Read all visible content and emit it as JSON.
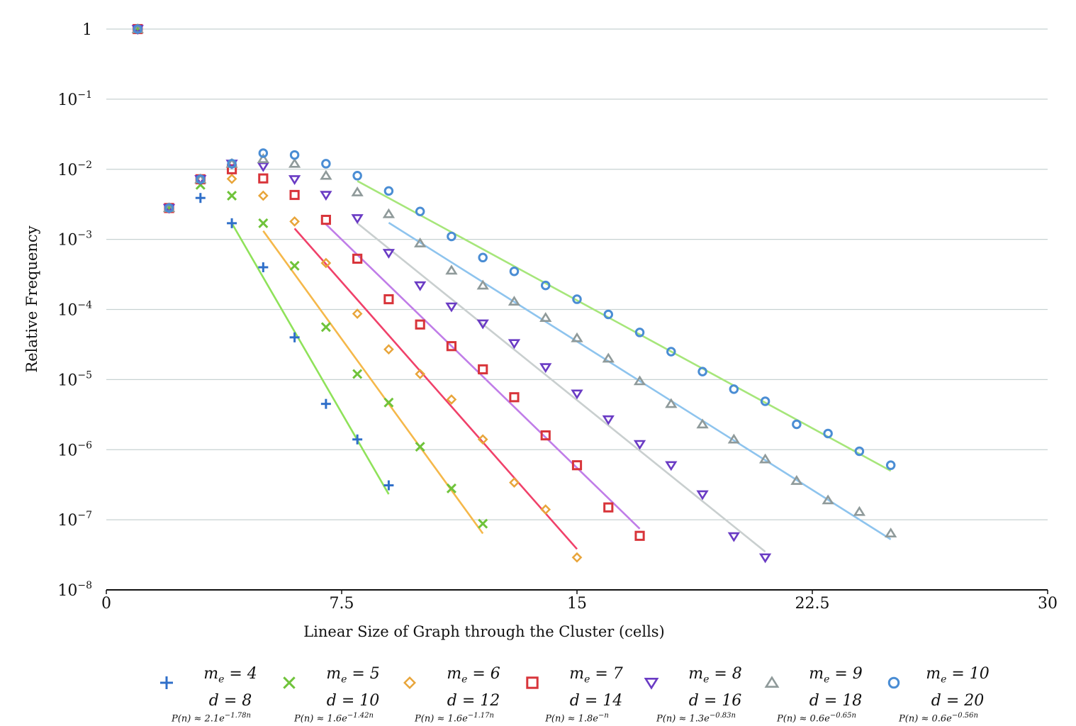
{
  "chart_data": {
    "type": "scatter",
    "yscale": "log",
    "xlabel": "Linear Size of Graph through the Cluster  (cells)",
    "ylabel": "Relative Frequency",
    "xlim": [
      0,
      30
    ],
    "ylim_exponent": [
      -8,
      0
    ],
    "xticks": [
      0,
      7.5,
      15,
      22.5,
      30
    ],
    "xtick_labels": [
      "0",
      "7.5",
      "15",
      "22.5",
      "30"
    ],
    "ytick_exponents": [
      0,
      -1,
      -2,
      -3,
      -4,
      -5,
      -6,
      -7,
      -8
    ],
    "ytick_base": "10",
    "ytick_one_label": "1",
    "grid": "horizontal",
    "legend_position": "bottom",
    "series": [
      {
        "name": "m_e = 4",
        "line1": "me = 4",
        "line2": "d = 8",
        "fit_label": "P(n) ≈ 2.1e^{−1.78n}",
        "fit_prefix": "P(n) ≈ 2.1e",
        "fit_exp": "−1.78n",
        "marker": "plus",
        "color": "#2f6fc9",
        "fit_color": "#8fe25a",
        "x": [
          1,
          2,
          3,
          4,
          5,
          6,
          7,
          8,
          9
        ],
        "y": [
          1,
          0.0028,
          0.0039,
          0.0017,
          0.0004,
          4e-05,
          4.5e-06,
          1.4e-06,
          3.1e-07
        ],
        "fit": {
          "a": 2.1,
          "b": 1.78,
          "x_range": [
            4,
            9
          ]
        }
      },
      {
        "name": "m_e = 5",
        "line1": "me = 5",
        "line2": "d = 10",
        "fit_label": "P(n) ≈ 1.6e^{−1.42n}",
        "fit_prefix": "P(n) ≈ 1.6e",
        "fit_exp": "−1.42n",
        "marker": "x",
        "color": "#6fc33a",
        "fit_color": "#f5b84a",
        "x": [
          1,
          2,
          3,
          4,
          5,
          6,
          7,
          8,
          9,
          10,
          11,
          12
        ],
        "y": [
          1,
          0.0028,
          0.006,
          0.0042,
          0.0017,
          0.00042,
          5.6e-05,
          1.2e-05,
          4.7e-06,
          1.1e-06,
          2.8e-07,
          8.8e-08
        ],
        "fit": {
          "a": 1.6,
          "b": 1.42,
          "x_range": [
            5,
            12
          ]
        }
      },
      {
        "name": "m_e = 6",
        "line1": "me = 6",
        "line2": "d = 12",
        "fit_label": "P(n) ≈ 1.6e^{−1.17n}",
        "fit_prefix": "P(n) ≈ 1.6e",
        "fit_exp": "−1.17n",
        "marker": "diamond",
        "color": "#e8a53a",
        "fit_color": "#f0416a",
        "x": [
          1,
          2,
          3,
          4,
          5,
          6,
          7,
          8,
          9,
          10,
          11,
          12,
          13,
          14,
          15
        ],
        "y": [
          1,
          0.0028,
          0.0073,
          0.0073,
          0.0042,
          0.0018,
          0.00046,
          8.7e-05,
          2.7e-05,
          1.2e-05,
          5.2e-06,
          1.4e-06,
          3.4e-07,
          1.4e-07,
          2.9e-08
        ],
        "fit": {
          "a": 1.6,
          "b": 1.17,
          "x_range": [
            6,
            15
          ]
        }
      },
      {
        "name": "m_e = 7",
        "line1": "me = 7",
        "line2": "d = 14",
        "fit_label": "P(n) ≈ 1.8e^{−n}",
        "fit_prefix": "P(n) ≈ 1.8e",
        "fit_exp": "−n",
        "marker": "square",
        "color": "#d8343a",
        "fit_color": "#c07de8",
        "x": [
          1,
          2,
          3,
          4,
          5,
          6,
          7,
          8,
          9,
          10,
          11,
          12,
          13,
          14,
          15,
          16,
          17
        ],
        "y": [
          1,
          0.0028,
          0.0072,
          0.01,
          0.0074,
          0.0043,
          0.0019,
          0.00053,
          0.00014,
          6.1e-05,
          3e-05,
          1.4e-05,
          5.6e-06,
          1.6e-06,
          6e-07,
          1.5e-07,
          5.9e-08
        ],
        "fit": {
          "a": 1.8,
          "b": 1.0,
          "x_range": [
            7,
            17
          ]
        }
      },
      {
        "name": "m_e = 8",
        "line1": "me = 8",
        "line2": "d = 16",
        "fit_label": "P(n) ≈ 1.3e^{−0.83n}",
        "fit_prefix": "P(n) ≈ 1.3e",
        "fit_exp": "−0.83n",
        "marker": "triangle-down",
        "color": "#6a3bc4",
        "fit_color": "#c9cfcf",
        "x": [
          1,
          2,
          3,
          4,
          5,
          6,
          7,
          8,
          9,
          10,
          11,
          12,
          13,
          14,
          15,
          16,
          17,
          18,
          19,
          20,
          21
        ],
        "y": [
          1,
          0.0028,
          0.0072,
          0.012,
          0.011,
          0.0072,
          0.0043,
          0.002,
          0.00064,
          0.00022,
          0.00011,
          6.3e-05,
          3.3e-05,
          1.5e-05,
          6.3e-06,
          2.7e-06,
          1.2e-06,
          6e-07,
          2.3e-07,
          5.8e-08,
          2.9e-08
        ],
        "fit": {
          "a": 1.3,
          "b": 0.83,
          "x_range": [
            8,
            21
          ]
        }
      },
      {
        "name": "m_e = 9",
        "line1": "me = 9",
        "line2": "d = 18",
        "fit_label": "P(n) ≈ 0.6e^{−0.65n}",
        "fit_prefix": "P(n) ≈ 0.6e",
        "fit_exp": "−0.65n",
        "marker": "triangle-up",
        "color": "#8f9a9a",
        "fit_color": "#8ec4ee",
        "x": [
          1,
          2,
          3,
          4,
          5,
          6,
          7,
          8,
          9,
          10,
          11,
          12,
          13,
          14,
          15,
          16,
          17,
          18,
          19,
          20,
          21,
          22,
          23,
          24,
          25
        ],
        "y": [
          1,
          0.0028,
          0.0072,
          0.012,
          0.014,
          0.012,
          0.0081,
          0.0047,
          0.0023,
          0.00088,
          0.00036,
          0.00022,
          0.00013,
          7.6e-05,
          3.9e-05,
          2e-05,
          9.5e-06,
          4.5e-06,
          2.3e-06,
          1.4e-06,
          7.3e-07,
          3.6e-07,
          1.9e-07,
          1.3e-07,
          6.4e-08
        ],
        "fit": {
          "a": 0.6,
          "b": 0.65,
          "x_range": [
            9,
            25
          ]
        }
      },
      {
        "name": "m_e = 10",
        "line1": "me = 10",
        "line2": "d = 20",
        "fit_label": "P(n) ≈ 0.6e^{−0.56n}",
        "fit_prefix": "P(n) ≈ 0.6e",
        "fit_exp": "−0.56n",
        "marker": "circle",
        "color": "#4a8dd4",
        "fit_color": "#a6e67a",
        "x": [
          1,
          2,
          3,
          4,
          5,
          6,
          7,
          8,
          9,
          10,
          11,
          12,
          13,
          14,
          15,
          16,
          17,
          18,
          19,
          20,
          21,
          22,
          23,
          24,
          25
        ],
        "y": [
          1,
          0.0028,
          0.0072,
          0.012,
          0.017,
          0.016,
          0.012,
          0.0081,
          0.0049,
          0.0025,
          0.0011,
          0.00055,
          0.00035,
          0.00022,
          0.00014,
          8.5e-05,
          4.7e-05,
          2.5e-05,
          1.3e-05,
          7.3e-06,
          4.9e-06,
          2.3e-06,
          1.7e-06,
          9.5e-07,
          6e-07
        ],
        "fit": {
          "a": 0.6,
          "b": 0.56,
          "x_range": [
            8,
            25
          ]
        }
      }
    ]
  }
}
